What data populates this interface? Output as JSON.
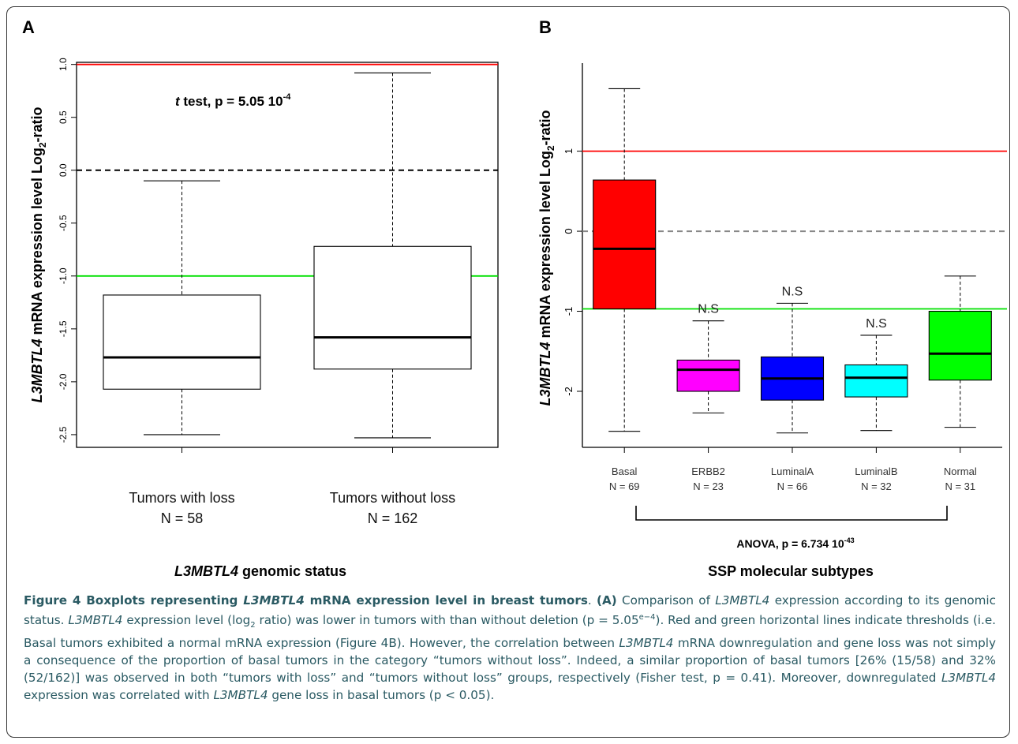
{
  "chart_data": [
    {
      "type": "boxplot",
      "panel_label": "A",
      "ylabel_italic": "L3MBTL4",
      "ylabel_rest": " mRNA expression level Log",
      "ylabel_sub": "2",
      "ylabel_end": "-ratio",
      "xlabel_italic": "L3MBTL4",
      "xlabel_rest": " genomic status",
      "ylim": [
        -2.62,
        1.02
      ],
      "yticks": [
        1.0,
        0.5,
        0.0,
        -0.5,
        -1.0,
        -1.5,
        -2.0,
        -2.5
      ],
      "ytick_labels": [
        "1.0",
        "0.5",
        "0.0",
        "-0.5",
        "-1.0",
        "-1.5",
        "-2.0",
        "-2.5"
      ],
      "annotation": {
        "italic": "t",
        "text": " test, p = 5.05 10",
        "sup": "-4"
      },
      "reference_lines": [
        {
          "y": 1.0,
          "color": "#ff0000",
          "style": "solid"
        },
        {
          "y": 0.0,
          "color": "#000000",
          "style": "dashed"
        },
        {
          "y": -1.0,
          "color": "#00e000",
          "style": "solid"
        }
      ],
      "boxes": [
        {
          "name": "Tumors with loss",
          "n_label": "N = 58",
          "whisker_low": -2.5,
          "q1": -2.07,
          "median": -1.77,
          "q3": -1.18,
          "whisker_high": -0.1,
          "fill": "#ffffff"
        },
        {
          "name": "Tumors without loss",
          "n_label": "N = 162",
          "whisker_low": -2.53,
          "q1": -1.88,
          "median": -1.58,
          "q3": -0.72,
          "whisker_high": 0.92,
          "fill": "#ffffff"
        }
      ]
    },
    {
      "type": "boxplot",
      "panel_label": "B",
      "ylabel_italic": "L3MBTL4",
      "ylabel_rest": " mRNA expression level Log",
      "ylabel_sub": "2",
      "ylabel_end": "-ratio",
      "xlabel": "SSP molecular subtypes",
      "ylim": [
        -2.7,
        2.1
      ],
      "yticks": [
        1,
        0,
        -1,
        -2
      ],
      "ytick_labels": [
        "1",
        "0",
        "-1",
        "-2"
      ],
      "annotation": {
        "text": "ANOVA, p = 6.734 10",
        "sup": "-43"
      },
      "reference_lines": [
        {
          "y": 1.0,
          "color": "#ff0000",
          "style": "solid"
        },
        {
          "y": 0.0,
          "color": "#888888",
          "style": "dashed"
        },
        {
          "y": -0.97,
          "color": "#00e000",
          "style": "solid"
        }
      ],
      "boxes": [
        {
          "name": "Basal",
          "n_label": "N = 69",
          "whisker_low": -2.5,
          "q1": -0.97,
          "median": -0.22,
          "q3": 0.64,
          "whisker_high": 1.78,
          "fill": "#ff0000",
          "sig": ""
        },
        {
          "name": "ERBB2",
          "n_label": "N = 23",
          "whisker_low": -2.27,
          "q1": -2.0,
          "median": -1.73,
          "q3": -1.61,
          "whisker_high": -1.12,
          "fill": "#ff00ff",
          "sig": "N.S"
        },
        {
          "name": "LuminalA",
          "n_label": "N = 66",
          "whisker_low": -2.52,
          "q1": -2.11,
          "median": -1.84,
          "q3": -1.57,
          "whisker_high": -0.9,
          "fill": "#0000ff",
          "sig": "N.S"
        },
        {
          "name": "LuminalB",
          "n_label": "N = 32",
          "whisker_low": -2.49,
          "q1": -2.07,
          "median": -1.83,
          "q3": -1.67,
          "whisker_high": -1.3,
          "fill": "#00ffff",
          "sig": "N.S"
        },
        {
          "name": "Normal",
          "n_label": "N = 31",
          "whisker_low": -2.45,
          "q1": -1.86,
          "median": -1.53,
          "q3": -1.0,
          "whisker_high": -0.56,
          "fill": "#00ff00",
          "sig": ""
        }
      ]
    }
  ],
  "caption": {
    "bold_start": "Figure 4 Boxplots representing ",
    "bold_italic": "L3MBTL4",
    "bold_end": " mRNA expression level in breast tumors",
    "period": ". ",
    "label_a": "(A)",
    "s1": " Comparison of ",
    "gene": "L3MBTL4",
    "s2": " expression according to its genomic status. ",
    "s3": " expression level (log",
    "sub2": "2",
    "s4": " ratio) was lower in tumors with than without deletion (p = 5.05",
    "sup_e4": "e−4",
    "s5": "). Red and green horizontal lines indicate thresholds (i.e. Basal tumors exhibited a normal mRNA expression (Figure 4B). However, the correlation between ",
    "s6": " mRNA downregulation and gene loss was not simply a consequence of the proportion of basal tumors in the category “tumors without loss”. Indeed, a similar proportion of basal tumors [26% (15/58) and 32% (52/162)] was observed in both “tumors with loss” and “tumors without loss” groups, respectively (Fisher test, p = 0.41). Moreover, downregulated ",
    "s7": " expression was correlated with ",
    "s8": " gene loss in basal tumors (p < 0.05)."
  }
}
